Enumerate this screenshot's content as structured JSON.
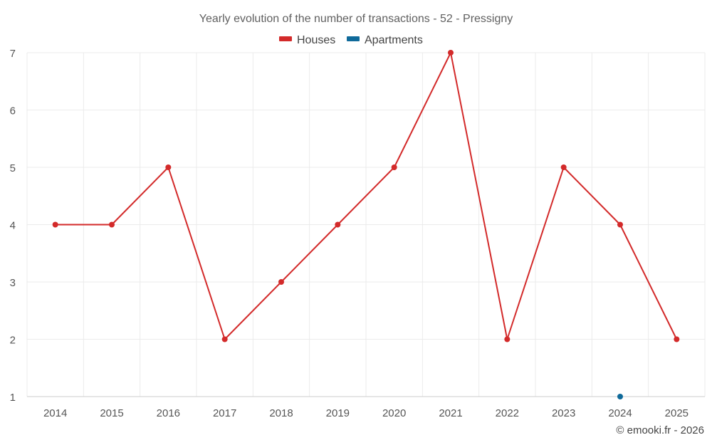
{
  "chart_data": {
    "type": "line",
    "title": "Yearly evolution of the number of transactions - 52 - Pressigny",
    "categories": [
      "2014",
      "2015",
      "2016",
      "2017",
      "2018",
      "2019",
      "2020",
      "2021",
      "2022",
      "2023",
      "2024",
      "2025"
    ],
    "series": [
      {
        "name": "Houses",
        "color": "#d32a2a",
        "values": [
          4,
          4,
          5,
          2,
          3,
          4,
          5,
          7,
          2,
          5,
          4,
          2
        ]
      },
      {
        "name": "Apartments",
        "color": "#0f6a9a",
        "values": [
          null,
          null,
          null,
          null,
          null,
          null,
          null,
          null,
          null,
          null,
          1,
          null
        ]
      }
    ],
    "ylim": [
      1,
      7
    ],
    "yticks": [
      1,
      2,
      3,
      4,
      5,
      6,
      7
    ],
    "xlabel": "",
    "ylabel": "",
    "grid": true,
    "legend": "top-center"
  },
  "credit": "© emooki.fr - 2026"
}
